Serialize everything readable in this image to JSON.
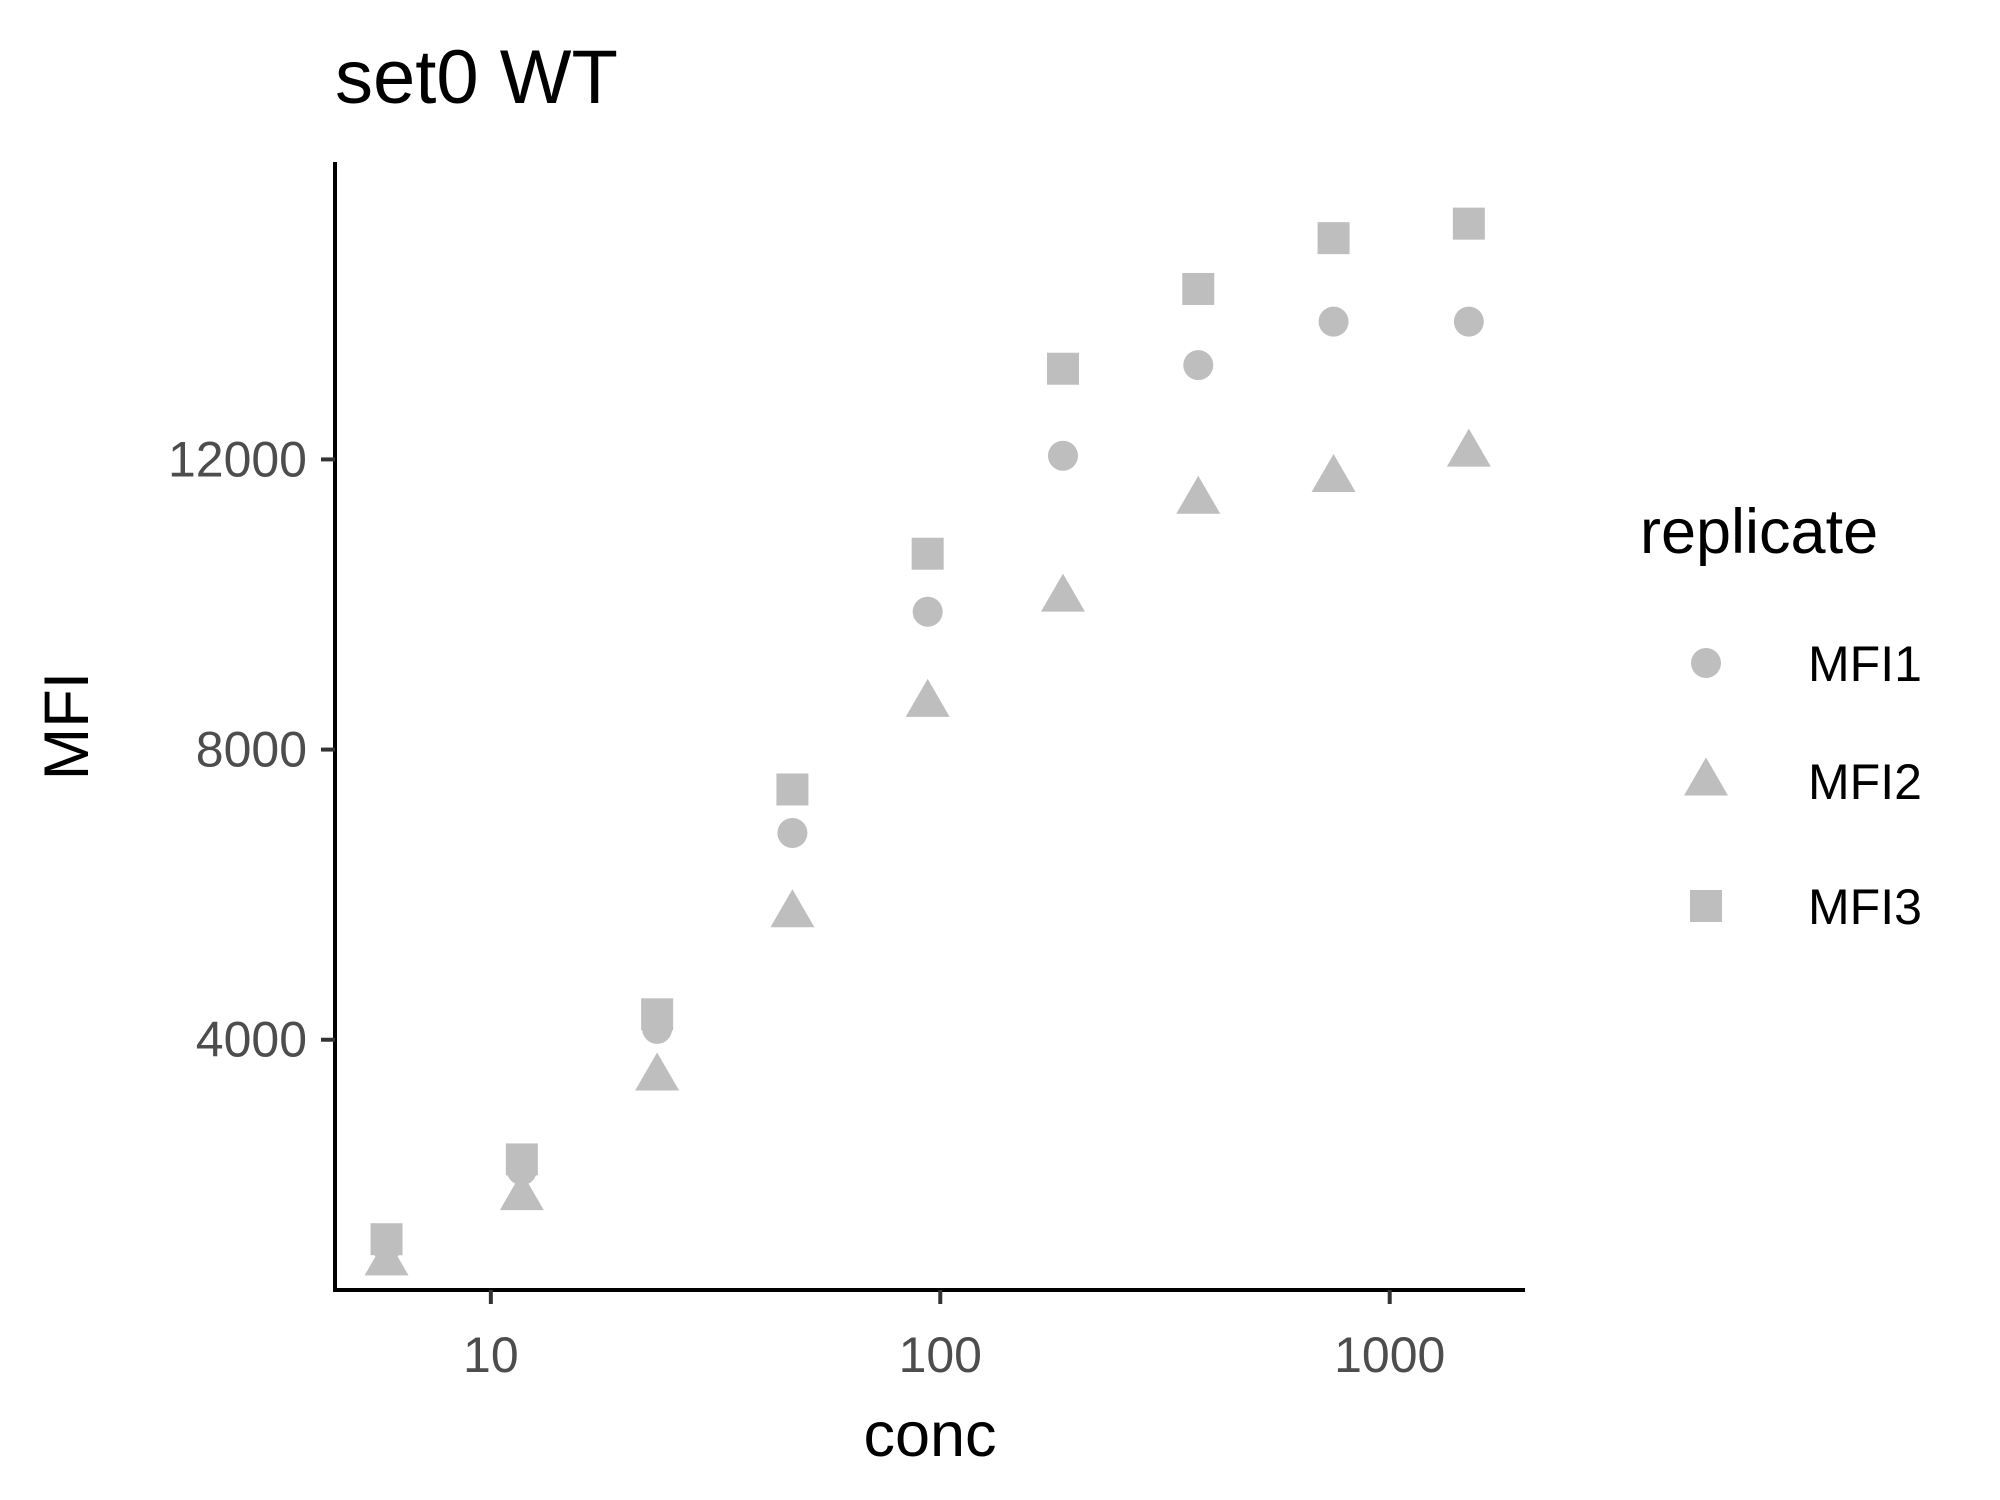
{
  "chart_data": {
    "type": "scatter",
    "title": "set0 WT",
    "xlabel": "conc",
    "ylabel": "MFI",
    "x_scale": "log10",
    "xlim": [
      4.5,
      2000
    ],
    "ylim": [
      550,
      16100
    ],
    "x_ticks": [
      10,
      100,
      1000
    ],
    "x_tick_labels": [
      "10",
      "100",
      "1000"
    ],
    "y_ticks": [
      4000,
      8000,
      12000
    ],
    "y_tick_labels": [
      "4000",
      "8000",
      "12000"
    ],
    "grid": false,
    "legend": {
      "title": "replicate",
      "position": "right"
    },
    "marker_color": "#bebebe",
    "x": [
      5.86,
      11.72,
      23.44,
      46.88,
      93.75,
      187.5,
      375,
      750,
      1500
    ],
    "series": [
      {
        "name": "MFI1",
        "marker": "circle",
        "values": [
          1150,
          2200,
          4150,
          6850,
          9900,
          12050,
          13300,
          13900,
          13900
        ]
      },
      {
        "name": "MFI2",
        "marker": "triangle",
        "values": [
          950,
          1850,
          3500,
          5750,
          8650,
          10100,
          11450,
          11750,
          12100
        ]
      },
      {
        "name": "MFI3",
        "marker": "square",
        "values": [
          1250,
          2350,
          4350,
          7450,
          10700,
          13250,
          14350,
          15050,
          15250
        ]
      }
    ]
  }
}
